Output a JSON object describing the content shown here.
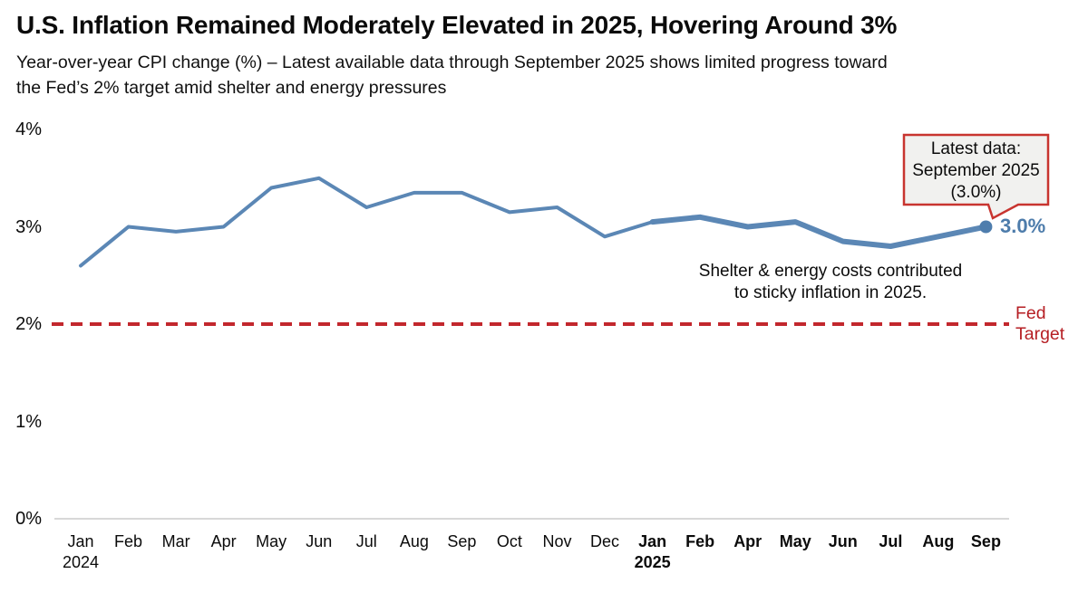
{
  "header": {
    "subtitle_line1": "Year-over-year CPI change (%) – Latest available data through September 2025 shows limited progress toward",
    "subtitle_line2": "the Fed’s 2% target amid shelter and energy pressures"
  },
  "chart_data": {
    "type": "line",
    "title": "U.S. Inflation Remained Moderately Elevated in 2025, Hovering Around 3%",
    "subtitle": "Year-over-year CPI change (%) – Latest available data through September 2025 shows limited progress toward the Fed’s 2% target amid shelter and energy pressures",
    "xlabel": "",
    "ylabel": "Year-over-year CPI change (%)",
    "ylim": [
      0,
      4
    ],
    "yticks": [
      {
        "value": 0,
        "label": "0%"
      },
      {
        "value": 1,
        "label": "1%"
      },
      {
        "value": 2,
        "label": "2%"
      },
      {
        "value": 3,
        "label": "3%"
      },
      {
        "value": 4,
        "label": "4%"
      }
    ],
    "categories": [
      "Jan",
      "Feb",
      "Mar",
      "Apr",
      "May",
      "Jun",
      "Jul",
      "Aug",
      "Sep",
      "Oct",
      "Nov",
      "Dec",
      "Jan",
      "Feb",
      "Apr",
      "May",
      "Jun",
      "Jul",
      "Aug",
      "Sep"
    ],
    "year_markers": {
      "0": "2024",
      "12": "2025"
    },
    "emphasis_from_index": 12,
    "series": [
      {
        "name": "CPI year-over-year change (%)",
        "values": [
          2.6,
          3.0,
          2.95,
          3.0,
          3.4,
          3.5,
          3.2,
          3.35,
          3.35,
          3.15,
          3.2,
          2.9,
          3.05,
          3.1,
          3.0,
          3.05,
          2.85,
          2.8,
          2.9,
          3.0
        ]
      }
    ],
    "reference_line": {
      "value": 2.0,
      "style": "dashed",
      "label": "Fed Target",
      "label_line1": "Fed",
      "label_line2": "Target"
    },
    "end_marker": {
      "index": 19,
      "value": 3.0,
      "label": "3.0%"
    },
    "grid": false,
    "legend_position": "none"
  },
  "annotations": {
    "callout": {
      "line1": "Latest data:",
      "line2": "September 2025",
      "line3": "(3.0%)"
    },
    "note_line1": "Shelter & energy costs contributed",
    "note_line2": "to sticky inflation in 2025."
  },
  "colors": {
    "line": "#5b87b5",
    "marker": "#4e7dad",
    "end_label": "#4d7cab",
    "fed_red": "#c2272d",
    "fed_label": "#b61f24",
    "callout_border": "#c8342f",
    "callout_bg": "#f1f1ef",
    "baseline": "#d8d8d8"
  }
}
